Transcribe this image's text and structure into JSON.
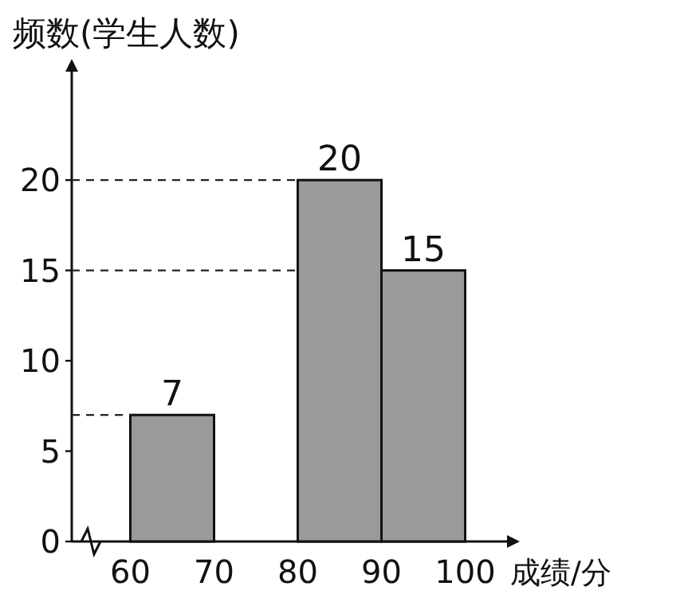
{
  "chart_data": {
    "type": "histogram",
    "xlabel": "成绩/分",
    "ylabel": "频数(学生人数)",
    "bins": [
      60,
      70,
      80,
      90,
      100
    ],
    "values": [
      7,
      null,
      20,
      15
    ],
    "color": "#9a9a9a",
    "data_labels": true,
    "xlim": [
      53,
      105
    ],
    "ylim": [
      0,
      26
    ],
    "xticks": [
      60,
      70,
      80,
      90,
      100
    ],
    "yticks": [
      0,
      5,
      10,
      15,
      20
    ],
    "ref_lines": [
      {
        "axis": "y",
        "value": 7,
        "line_style": "dashed"
      },
      {
        "axis": "y",
        "value": 20,
        "line_style": "dashed"
      },
      {
        "axis": "y",
        "value": 15,
        "line_style": "dashed"
      }
    ]
  }
}
